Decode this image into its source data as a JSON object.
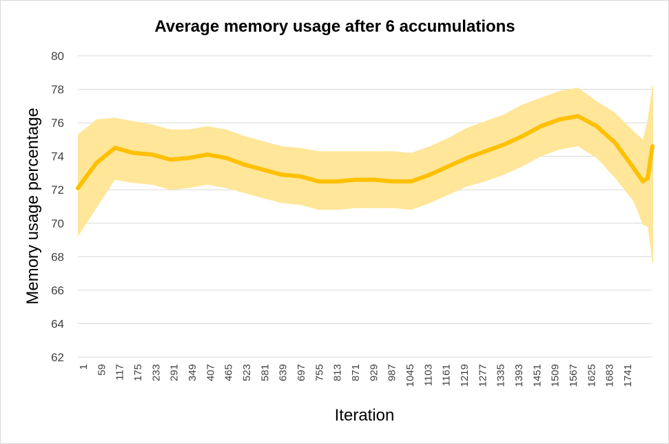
{
  "chart_data": {
    "type": "line",
    "title": "Average memory usage after 6 accumulations",
    "xlabel": "Iteration",
    "ylabel": "Memory usage percentage",
    "ylim": [
      62,
      80
    ],
    "yticks": [
      62,
      64,
      66,
      68,
      70,
      72,
      74,
      76,
      78,
      80
    ],
    "x_range": [
      1,
      1800
    ],
    "x_tick_labels": [
      1,
      59,
      117,
      175,
      233,
      291,
      349,
      407,
      465,
      523,
      581,
      639,
      697,
      755,
      813,
      871,
      929,
      987,
      1045,
      1103,
      1161,
      1219,
      1277,
      1335,
      1393,
      1451,
      1509,
      1567,
      1625,
      1683,
      1741
    ],
    "grid": true,
    "legend": "none",
    "series": [
      {
        "color": "#FFC000",
        "x": [
          1,
          59,
          117,
          175,
          233,
          291,
          349,
          407,
          465,
          523,
          581,
          639,
          697,
          755,
          813,
          871,
          929,
          987,
          1045,
          1103,
          1161,
          1219,
          1277,
          1335,
          1393,
          1451,
          1509,
          1567,
          1625,
          1683,
          1741,
          1770,
          1785,
          1800
        ],
        "values": [
          72.1,
          73.6,
          74.5,
          74.2,
          74.1,
          73.8,
          73.9,
          74.1,
          73.9,
          73.5,
          73.2,
          72.9,
          72.8,
          72.5,
          72.5,
          72.6,
          72.6,
          72.5,
          72.5,
          72.9,
          73.4,
          73.9,
          74.3,
          74.7,
          75.2,
          75.8,
          76.2,
          76.4,
          75.8,
          74.8,
          73.3,
          72.5,
          72.7,
          74.6
        ]
      }
    ],
    "error_band": {
      "color": "#FFE699",
      "x": [
        1,
        59,
        117,
        175,
        233,
        291,
        349,
        407,
        465,
        523,
        581,
        639,
        697,
        755,
        813,
        871,
        929,
        987,
        1045,
        1103,
        1161,
        1219,
        1277,
        1335,
        1393,
        1451,
        1509,
        1567,
        1625,
        1683,
        1741,
        1770,
        1785,
        1800
      ],
      "upper": [
        75.3,
        76.2,
        76.3,
        76.1,
        75.9,
        75.6,
        75.6,
        75.8,
        75.6,
        75.2,
        74.9,
        74.6,
        74.5,
        74.3,
        74.3,
        74.3,
        74.3,
        74.3,
        74.2,
        74.6,
        75.1,
        75.7,
        76.1,
        76.5,
        77.1,
        77.5,
        77.9,
        78.1,
        77.3,
        76.6,
        75.5,
        75.0,
        76.2,
        78.2
      ],
      "lower": [
        69.2,
        70.9,
        72.6,
        72.4,
        72.3,
        72.0,
        72.1,
        72.3,
        72.1,
        71.8,
        71.5,
        71.2,
        71.1,
        70.8,
        70.8,
        70.9,
        70.9,
        70.9,
        70.8,
        71.2,
        71.7,
        72.2,
        72.5,
        72.9,
        73.4,
        74.0,
        74.4,
        74.6,
        73.9,
        72.7,
        71.3,
        69.9,
        69.8,
        67.7
      ]
    }
  }
}
